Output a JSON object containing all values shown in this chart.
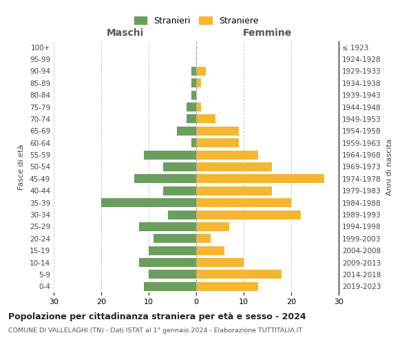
{
  "age_groups": [
    "0-4",
    "5-9",
    "10-14",
    "15-19",
    "20-24",
    "25-29",
    "30-34",
    "35-39",
    "40-44",
    "45-49",
    "50-54",
    "55-59",
    "60-64",
    "65-69",
    "70-74",
    "75-79",
    "80-84",
    "85-89",
    "90-94",
    "95-99",
    "100+"
  ],
  "birth_years": [
    "2019-2023",
    "2014-2018",
    "2009-2013",
    "2004-2008",
    "1999-2003",
    "1994-1998",
    "1989-1993",
    "1984-1988",
    "1979-1983",
    "1974-1978",
    "1969-1973",
    "1964-1968",
    "1959-1963",
    "1954-1958",
    "1949-1953",
    "1944-1948",
    "1939-1943",
    "1934-1938",
    "1929-1933",
    "1924-1928",
    "≤ 1923"
  ],
  "males": [
    11,
    10,
    12,
    10,
    9,
    12,
    6,
    20,
    7,
    13,
    7,
    11,
    1,
    4,
    2,
    2,
    1,
    1,
    1,
    0,
    0
  ],
  "females": [
    13,
    18,
    10,
    6,
    3,
    7,
    22,
    20,
    16,
    27,
    16,
    13,
    9,
    9,
    4,
    1,
    0,
    1,
    2,
    0,
    0
  ],
  "male_color": "#6b9e5e",
  "female_color": "#f5b731",
  "title": "Popolazione per cittadinanza straniera per età e sesso - 2024",
  "subtitle": "COMUNE DI VALLELAGHI (TN) - Dati ISTAT al 1° gennaio 2024 - Elaborazione TUTTITALIA.IT",
  "xlabel_left": "Maschi",
  "xlabel_right": "Femmine",
  "ylabel_left": "Fasce di età",
  "ylabel_right": "Anni di nascita",
  "legend_male": "Stranieri",
  "legend_female": "Straniere",
  "xlim": 30,
  "background_color": "#ffffff",
  "grid_color": "#cccccc",
  "bar_height": 0.75
}
